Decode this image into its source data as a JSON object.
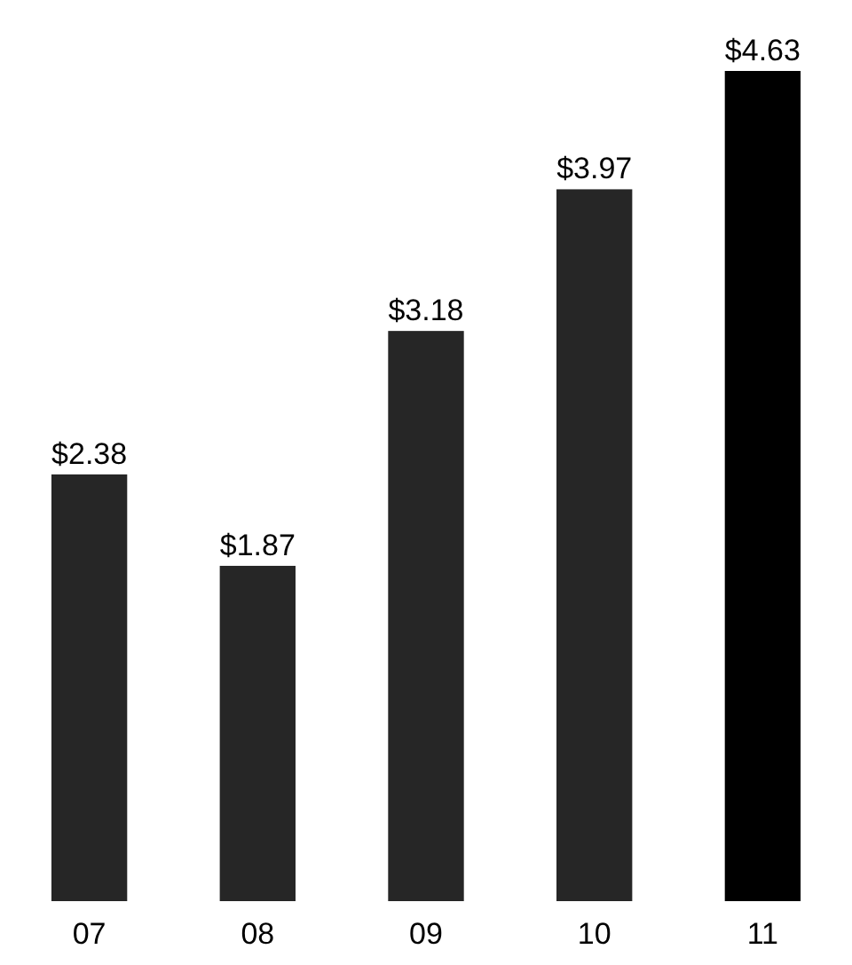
{
  "chart_data": {
    "type": "bar",
    "categories": [
      "07",
      "08",
      "09",
      "10",
      "11"
    ],
    "values": [
      2.38,
      1.87,
      3.18,
      3.97,
      4.63
    ],
    "colors": [
      "#262626",
      "#262626",
      "#262626",
      "#262626",
      "#000000"
    ],
    "value_labels": [
      "$2.38",
      "$1.87",
      "$3.18",
      "$3.97",
      "$4.63"
    ]
  }
}
